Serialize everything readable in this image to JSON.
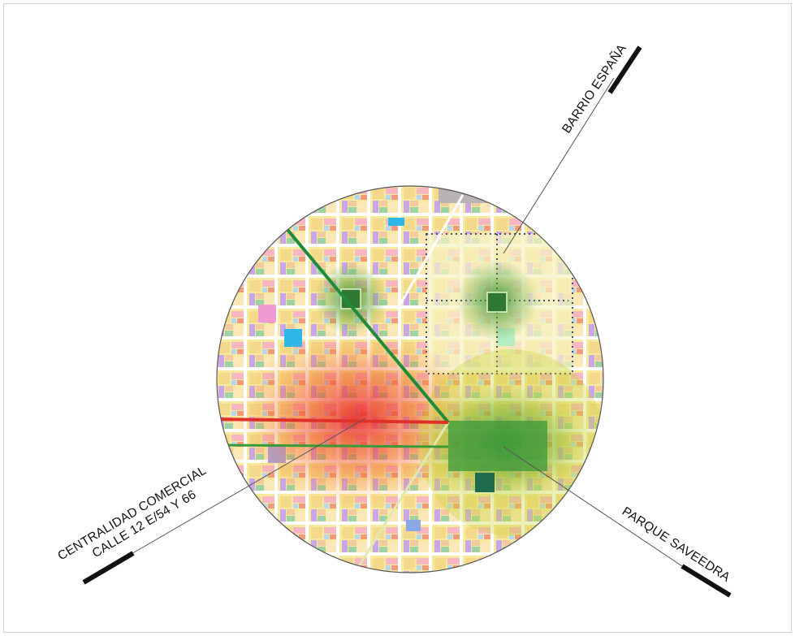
{
  "labels": {
    "barrio": "BARRIO ESPAÑA",
    "centralidad_line1": "CENTRALIDAD COMERCIAL",
    "centralidad_line2": "CALLE 12 E/54 Y 66",
    "parque": "PARQUE SAVEEDRA"
  },
  "colors": {
    "background": "#ffffff",
    "map_base": "#f3e7a2",
    "green_zone": "#3f9a3f",
    "commercial_zone": "#e8402a",
    "leader_line": "#555555",
    "leader_bar": "#111111"
  }
}
